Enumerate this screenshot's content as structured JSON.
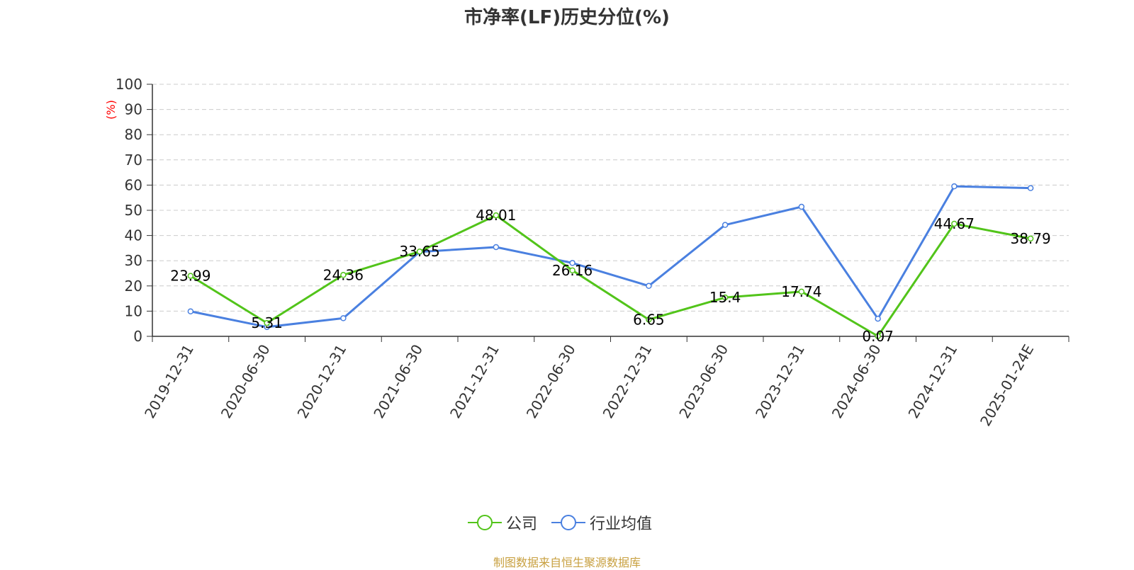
{
  "chart_data": {
    "type": "line",
    "title": "市净率(LF)历史分位(%)",
    "ylabel": "(%)",
    "xlabel": "",
    "ylim": [
      0,
      100
    ],
    "yticks": [
      0,
      10,
      20,
      30,
      40,
      50,
      60,
      70,
      80,
      90,
      100
    ],
    "grid": true,
    "legend_position": "bottom-center",
    "categories": [
      "2019-12-31",
      "2020-06-30",
      "2020-12-31",
      "2021-06-30",
      "2021-12-31",
      "2022-06-30",
      "2022-12-31",
      "2023-06-30",
      "2023-12-31",
      "2024-06-30",
      "2024-12-31",
      "2025-01-24E"
    ],
    "series": [
      {
        "name": "公司",
        "color": "#52c41a",
        "values": [
          23.99,
          5.31,
          24.36,
          33.65,
          48.01,
          26.16,
          6.65,
          15.4,
          17.74,
          0.07,
          44.67,
          38.79
        ],
        "labels": [
          "23.99",
          "5.31",
          "24.36",
          "33.65",
          "48.01",
          "26.16",
          "6.65",
          "15.4",
          "17.74",
          "0.07",
          "44.67",
          "38.79"
        ]
      },
      {
        "name": "行业均值",
        "color": "#4a80e0",
        "values": [
          9.9,
          3.7,
          7.2,
          33.5,
          35.4,
          29.1,
          20.0,
          44.2,
          51.4,
          7.0,
          59.5,
          58.8
        ]
      }
    ]
  },
  "source_note": "制图数据来自恒生聚源数据库",
  "colors": {
    "ylabel": "#ff0000",
    "source_note": "#c8a040",
    "grid": "#cccccc",
    "axis": "#333333"
  }
}
